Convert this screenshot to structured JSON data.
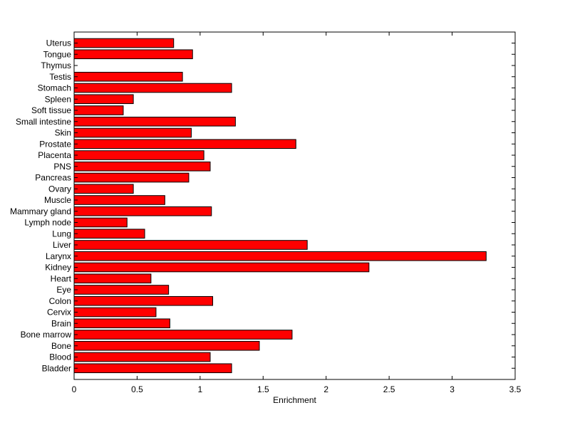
{
  "chart_data": {
    "type": "bar",
    "orientation": "horizontal",
    "categories": [
      "Uterus",
      "Tongue",
      "Thymus",
      "Testis",
      "Stomach",
      "Spleen",
      "Soft tissue",
      "Small intestine",
      "Skin",
      "Prostate",
      "Placenta",
      "PNS",
      "Pancreas",
      "Ovary",
      "Muscle",
      "Mammary gland",
      "Lymph node",
      "Lung",
      "Liver",
      "Larynx",
      "Kidney",
      "Heart",
      "Eye",
      "Colon",
      "Cervix",
      "Brain",
      "Bone marrow",
      "Bone",
      "Blood",
      "Bladder"
    ],
    "values": [
      0.79,
      0.94,
      0.0,
      0.86,
      1.25,
      0.47,
      0.39,
      1.28,
      0.93,
      1.76,
      1.03,
      1.08,
      0.91,
      0.47,
      0.72,
      1.09,
      0.42,
      0.56,
      1.85,
      3.27,
      2.34,
      0.61,
      0.75,
      1.1,
      0.65,
      0.76,
      1.73,
      1.47,
      1.08,
      1.25
    ],
    "title": "",
    "xlabel": "Enrichment",
    "ylabel": "",
    "xlim": [
      0,
      3.5
    ],
    "xticks": [
      "0",
      "0.5",
      "1",
      "1.5",
      "2",
      "2.5",
      "3",
      "3.5"
    ],
    "grid": false,
    "bar_color": "#ff0000",
    "bar_edge_color": "#000000"
  }
}
